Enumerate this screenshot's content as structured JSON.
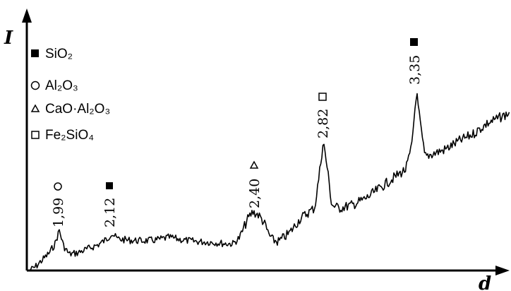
{
  "chart_data": {
    "type": "line",
    "xlabel": "d",
    "ylabel": "I",
    "grid": false,
    "legend_position": "top-left",
    "legend": [
      {
        "marker": "filled-square",
        "label": "SiO₂"
      },
      {
        "marker": "open-circle",
        "label": "Al₂O₃"
      },
      {
        "marker": "open-triangle",
        "label": "CaO·Al₂O₃"
      },
      {
        "marker": "open-square",
        "label": "Fe₂SiO₄"
      }
    ],
    "peaks": [
      {
        "d_label": "1,99",
        "marker": "open-circle"
      },
      {
        "d_label": "2,12",
        "marker": "filled-square"
      },
      {
        "d_label": "2,40",
        "marker": "open-triangle"
      },
      {
        "d_label": "2,82",
        "marker": "open-square"
      },
      {
        "d_label": "3,35",
        "marker": "filled-square"
      }
    ]
  }
}
